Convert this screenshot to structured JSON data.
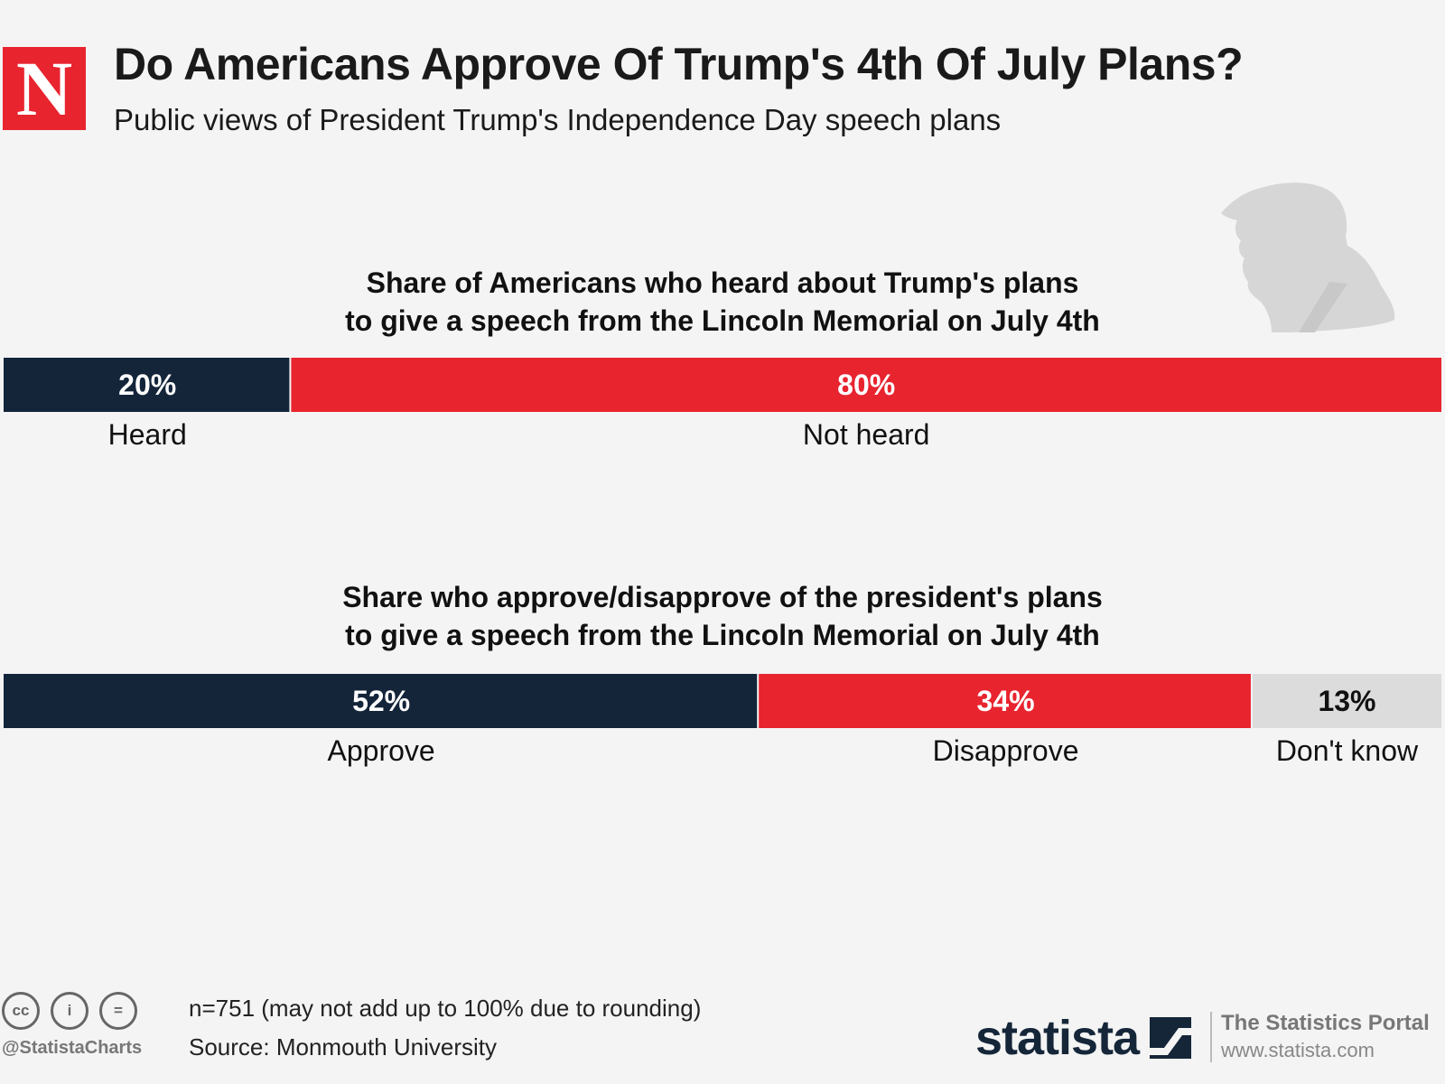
{
  "header": {
    "logo_letter": "N",
    "title": "Do Americans Approve Of Trump's 4th Of July Plans?",
    "subtitle": "Public views of President Trump's Independence Day speech plans"
  },
  "chart_data": [
    {
      "type": "bar",
      "stacked": true,
      "orientation": "horizontal",
      "title": [
        "Share of Americans who heard about Trump's plans",
        "to give a speech from the Lincoln Memorial on July 4th"
      ],
      "unit": "%",
      "series": [
        {
          "name": "Heard",
          "value": 20,
          "label": "20%",
          "color": "#14253a",
          "text_color": "#ffffff"
        },
        {
          "name": "Not heard",
          "value": 80,
          "label": "80%",
          "color": "#e8242f",
          "text_color": "#ffffff"
        }
      ]
    },
    {
      "type": "bar",
      "stacked": true,
      "orientation": "horizontal",
      "title": [
        "Share who approve/disapprove of the president's plans",
        "to give a speech from the Lincoln Memorial on July 4th"
      ],
      "unit": "%",
      "series": [
        {
          "name": "Approve",
          "value": 52,
          "label": "52%",
          "color": "#14253a",
          "text_color": "#ffffff"
        },
        {
          "name": "Disapprove",
          "value": 34,
          "label": "34%",
          "color": "#e8242f",
          "text_color": "#ffffff"
        },
        {
          "name": "Don't know",
          "value": 13,
          "label": "13%",
          "color": "#dcdcdc",
          "text_color": "#111111"
        }
      ]
    }
  ],
  "footer": {
    "icons": [
      {
        "name": "cc-icon",
        "glyph": "cc"
      },
      {
        "name": "attribution-icon",
        "glyph": "i"
      },
      {
        "name": "no-derivatives-icon",
        "glyph": "="
      }
    ],
    "handle": "@StatistaCharts",
    "note": "n=751 (may not add up to 100% due to rounding)",
    "source": "Source: Monmouth University",
    "brand": "statista",
    "portal": "The Statistics Portal",
    "url": "www.statista.com"
  }
}
